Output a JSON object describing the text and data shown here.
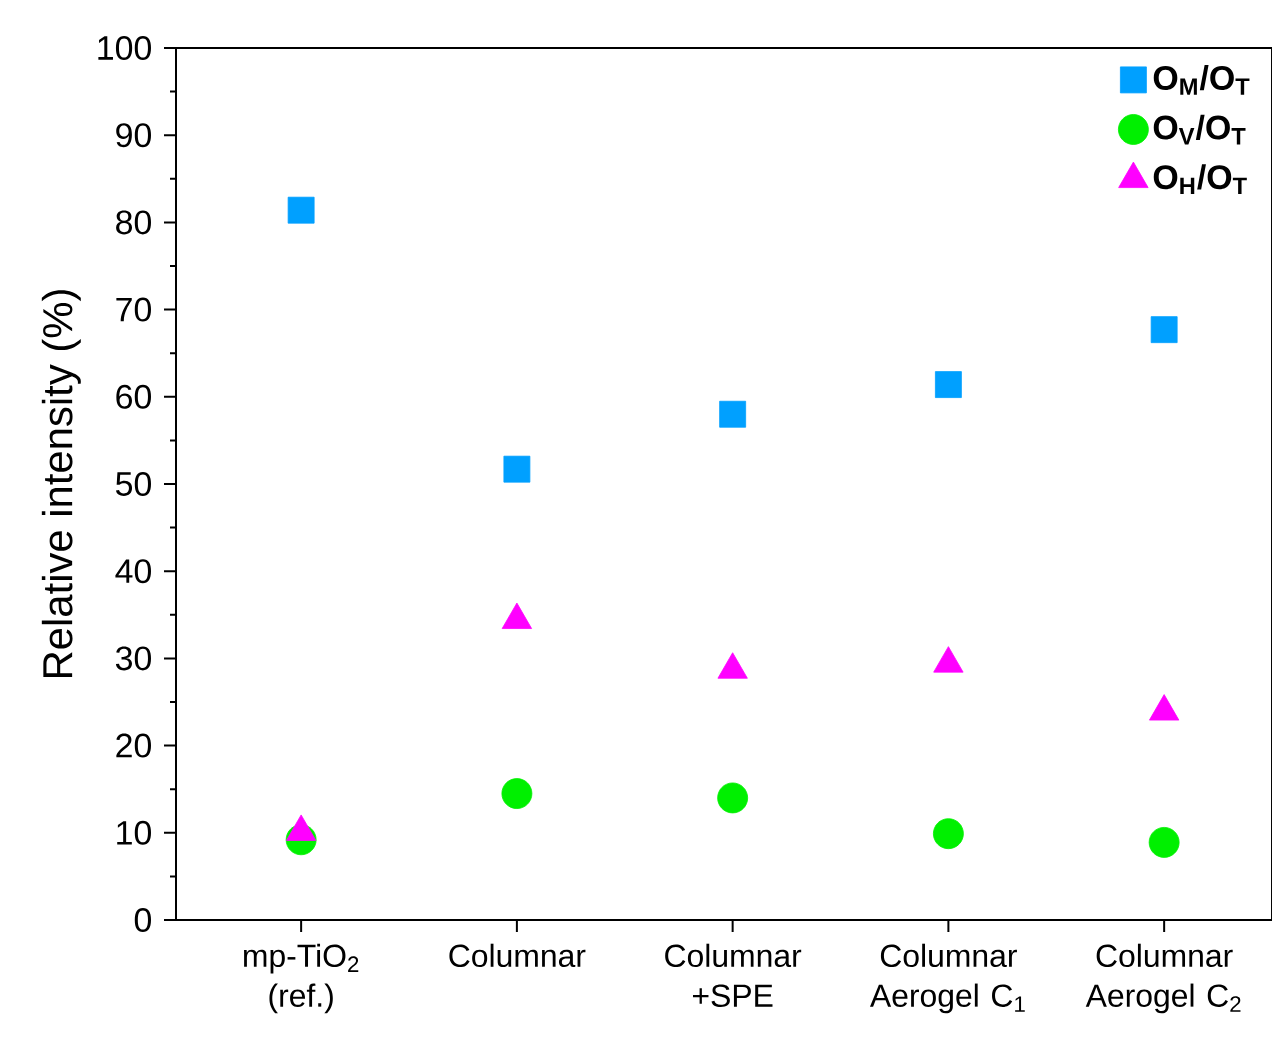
{
  "chart_data": {
    "type": "scatter",
    "ylabel": "Relative intensity (%)",
    "categories": [
      "mp-TiO$_{2}$ (ref.)",
      "Columnar",
      "Columnar +SPE",
      "Columnar Aerogel C$_{1}$",
      "Columnar Aerogel C$_{2}$"
    ],
    "series": [
      {
        "name": "O$_{M}$/O$_{T}$",
        "color": "#00a0ff",
        "marker": "square",
        "values": [
          81.4,
          51.7,
          58.0,
          61.4,
          67.7
        ]
      },
      {
        "name": "O$_{V}$/O$_{T}$",
        "color": "#00f000",
        "marker": "circle",
        "values": [
          9.2,
          14.5,
          14.0,
          9.9,
          8.9
        ]
      },
      {
        "name": "O$_{H}$/O$_{T}$",
        "color": "#ff00ff",
        "marker": "triangle",
        "values": [
          10.1,
          34.4,
          28.7,
          29.4,
          23.9
        ]
      }
    ],
    "ylim": [
      0,
      100
    ],
    "yticks": [
      0,
      10,
      20,
      30,
      40,
      50,
      60,
      70,
      80,
      90,
      100
    ],
    "legend": "top right",
    "grid": false
  }
}
